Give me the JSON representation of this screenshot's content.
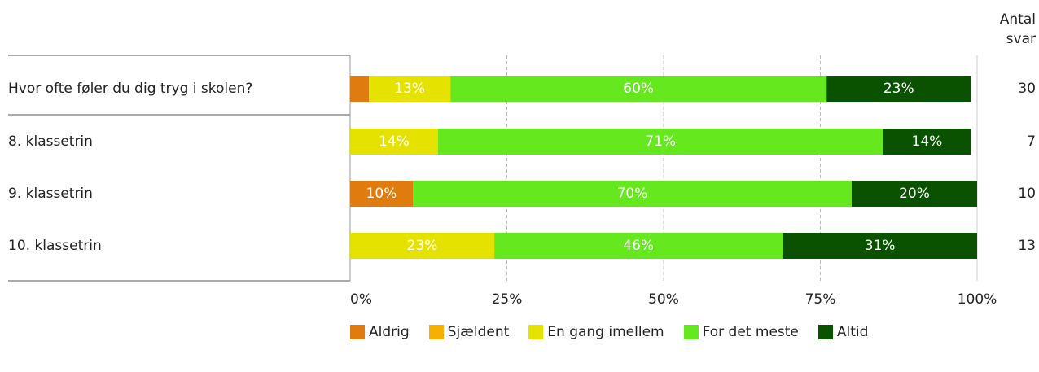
{
  "chart_data": {
    "type": "stacked-bar-horizontal",
    "categories": [
      "Hvor ofte føler du dig tryg i skolen?",
      "8. klassetrin",
      "9. klassetrin",
      "10. klassetrin"
    ],
    "series": [
      {
        "name": "Aldrig",
        "color": "#e07b10",
        "values": [
          3,
          0,
          10,
          0
        ],
        "value_labels": [
          null,
          null,
          "10%",
          null
        ]
      },
      {
        "name": "Sjældent",
        "color": "#f6b000",
        "values": [
          0,
          0,
          0,
          0
        ],
        "value_labels": [
          null,
          null,
          null,
          null
        ]
      },
      {
        "name": "En gang imellem",
        "color": "#e6e200",
        "values": [
          13,
          14,
          0,
          23
        ],
        "value_labels": [
          "13%",
          "14%",
          null,
          "23%"
        ]
      },
      {
        "name": "For det meste",
        "color": "#66e81e",
        "values": [
          60,
          71,
          70,
          46
        ],
        "value_labels": [
          "60%",
          "71%",
          "70%",
          "46%"
        ]
      },
      {
        "name": "Altid",
        "color": "#0a5200",
        "values": [
          23,
          14,
          20,
          31
        ],
        "value_labels": [
          "23%",
          "14%",
          "20%",
          "31%"
        ]
      }
    ],
    "count_header": "Antal svar",
    "counts": [
      30,
      7,
      10,
      13
    ],
    "xlim": [
      0,
      100
    ],
    "xticks": [
      {
        "value": 0,
        "label": "0%"
      },
      {
        "value": 25,
        "label": "25%"
      },
      {
        "value": 50,
        "label": "50%"
      },
      {
        "value": 75,
        "label": "75%"
      },
      {
        "value": 100,
        "label": "100%"
      }
    ],
    "grid": true
  }
}
